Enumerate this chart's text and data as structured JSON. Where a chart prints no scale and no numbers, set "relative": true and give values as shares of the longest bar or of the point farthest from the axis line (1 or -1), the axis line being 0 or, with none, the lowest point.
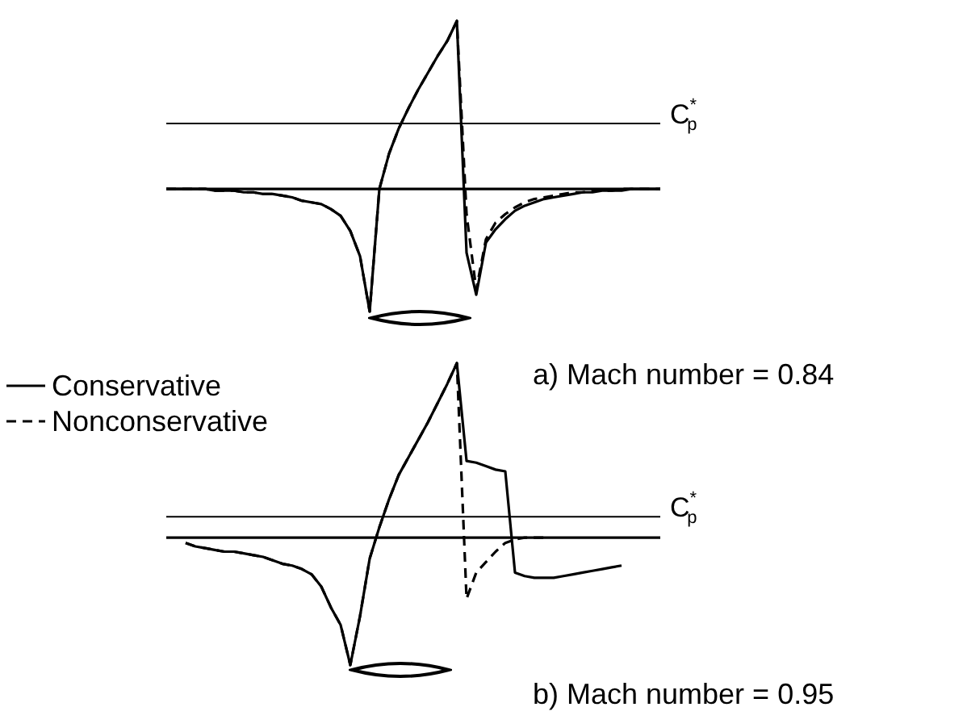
{
  "chart_data": [
    {
      "type": "line",
      "title": "a) Mach number = 0.84",
      "relative": true,
      "legend": "left",
      "marker": "none",
      "categories": [
        null,
        null,
        null,
        null,
        null,
        null,
        null,
        null,
        null,
        null,
        null,
        null,
        null,
        null,
        null,
        null,
        null,
        null,
        null,
        null,
        null,
        null,
        null,
        null,
        null,
        null,
        null,
        null,
        null,
        null,
        null,
        null,
        null,
        null,
        null,
        null,
        null,
        null,
        null,
        null,
        null,
        null,
        null,
        null,
        null,
        null,
        null,
        null,
        null,
        null,
        null,
        null
      ],
      "series": [
        {
          "name": "Conservative",
          "color": "#000000",
          "line_style": "solid",
          "values": [
            0,
            0,
            0,
            0,
            0,
            -0.01,
            -0.01,
            -0.01,
            -0.02,
            -0.02,
            -0.03,
            -0.03,
            -0.04,
            -0.05,
            -0.07,
            -0.08,
            -0.09,
            -0.12,
            -0.16,
            -0.25,
            -0.4,
            -0.73,
            0,
            0.21,
            0.36,
            0.48,
            0.59,
            0.69,
            0.79,
            0.88,
            1,
            -0.38,
            -0.63,
            -0.32,
            -0.24,
            -0.18,
            -0.13,
            -0.1,
            -0.08,
            -0.06,
            -0.05,
            -0.04,
            -0.03,
            -0.02,
            -0.02,
            -0.01,
            -0.01,
            -0.01,
            0,
            0,
            0,
            0
          ]
        },
        {
          "name": "Nonconservative",
          "color": "#000000",
          "line_style": "dashed",
          "values": [
            0,
            0,
            0,
            0,
            0,
            -0.01,
            -0.01,
            -0.01,
            -0.02,
            -0.02,
            -0.03,
            -0.03,
            -0.04,
            -0.05,
            -0.07,
            -0.08,
            -0.09,
            -0.12,
            -0.16,
            -0.25,
            -0.4,
            -0.73,
            0,
            0.21,
            0.36,
            0.48,
            0.59,
            0.69,
            0.79,
            0.88,
            1,
            -0.15,
            -0.6,
            -0.3,
            -0.2,
            -0.15,
            -0.11,
            -0.08,
            -0.06,
            -0.05,
            -0.04,
            -0.03,
            -0.02,
            -0.02,
            -0.01,
            -0.01,
            -0.01,
            0,
            0,
            0,
            0,
            0
          ]
        }
      ],
      "ref_lines": [
        {
          "axis": "y",
          "value": 0.39,
          "label": "C$^{*}$$_{p}$"
        }
      ]
    },
    {
      "type": "line",
      "title": "b) Mach number = 0.95",
      "relative": true,
      "marker": "none",
      "categories": [
        null,
        null,
        null,
        null,
        null,
        null,
        null,
        null,
        null,
        null,
        null,
        null,
        null,
        null,
        null,
        null,
        null,
        null,
        null,
        null,
        null,
        null,
        null,
        null,
        null,
        null,
        null,
        null,
        null,
        null,
        null,
        null,
        null,
        null,
        null,
        null,
        null,
        null,
        null,
        null,
        null,
        null,
        null,
        null,
        null,
        null,
        null,
        null,
        null,
        null,
        null,
        null
      ],
      "series": [
        {
          "color": "#000000",
          "line_style": "solid",
          "values": [
            null,
            null,
            -0.03,
            -0.05,
            -0.06,
            -0.07,
            -0.08,
            -0.08,
            -0.09,
            -0.1,
            -0.11,
            -0.13,
            -0.15,
            -0.16,
            -0.18,
            -0.21,
            -0.28,
            -0.4,
            -0.5,
            -0.73,
            -0.45,
            -0.12,
            0.06,
            0.22,
            0.36,
            0.46,
            0.56,
            0.66,
            0.77,
            0.88,
            1,
            0.44,
            0.43,
            0.41,
            0.39,
            0.38,
            -0.2,
            -0.22,
            -0.23,
            -0.23,
            -0.23,
            -0.22,
            -0.21,
            -0.2,
            -0.19,
            -0.18,
            -0.17,
            -0.16,
            null,
            null,
            null,
            null
          ]
        },
        {
          "color": "#000000",
          "line_style": "dashed",
          "values": [
            null,
            null,
            -0.03,
            -0.05,
            -0.06,
            -0.07,
            -0.08,
            -0.08,
            -0.09,
            -0.1,
            -0.11,
            -0.13,
            -0.15,
            -0.16,
            -0.18,
            -0.21,
            -0.28,
            -0.4,
            -0.5,
            -0.73,
            -0.45,
            -0.12,
            0.06,
            0.22,
            0.36,
            0.46,
            0.56,
            0.66,
            0.77,
            0.88,
            1,
            -0.35,
            -0.2,
            -0.14,
            -0.08,
            -0.03,
            -0.01,
            0,
            0,
            0,
            null,
            null,
            null,
            null,
            null,
            null,
            null,
            null,
            null,
            null,
            null,
            null
          ]
        }
      ],
      "ref_lines": [
        {
          "axis": "y",
          "value": 0.12,
          "label": "C$^{*}$$_{p}$"
        }
      ]
    }
  ]
}
